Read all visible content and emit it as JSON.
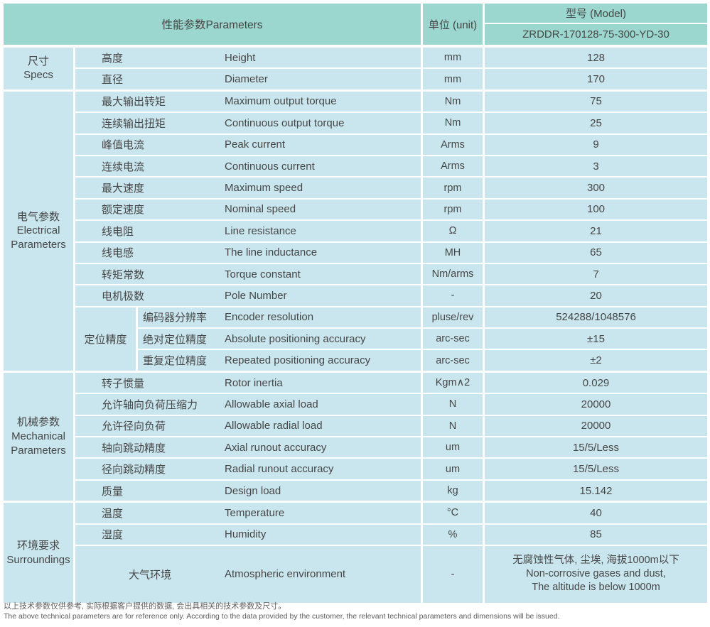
{
  "header": {
    "parameters_label": "性能参数Parameters",
    "unit_label": "单位 (unit)",
    "model_label": "型号 (Model)",
    "model_value": "ZRDDR-170128-75-300-YD-30"
  },
  "colors": {
    "header_teal": "#9bd7ce",
    "row_blue": "#c9e6ee",
    "text": "#464646"
  },
  "sections": {
    "specs": {
      "cn": "尺寸",
      "en1": "Specs",
      "en2": ""
    },
    "electrical": {
      "cn": "电气参数",
      "en1": "Electrical",
      "en2": "Parameters"
    },
    "mechanical": {
      "cn": "机械参数",
      "en1": "Mechanical",
      "en2": "Parameters"
    },
    "surroundings": {
      "cn": "环境要求",
      "en1": "Surroundings",
      "en2": ""
    }
  },
  "accuracy_group": {
    "cn": "定位精度"
  },
  "rows": {
    "height": {
      "cn": "高度",
      "en": "Height",
      "unit": "mm",
      "value": "128"
    },
    "diameter": {
      "cn": "直径",
      "en": "Diameter",
      "unit": "mm",
      "value": "170"
    },
    "max_torque": {
      "cn": "最大输出转矩",
      "en": "Maximum output torque",
      "unit": "Nm",
      "value": "75"
    },
    "cont_torque": {
      "cn": "连续输出扭矩",
      "en": "Continuous output torque",
      "unit": "Nm",
      "value": "25"
    },
    "peak_current": {
      "cn": "峰值电流",
      "en": "Peak current",
      "unit": "Arms",
      "value": "9"
    },
    "cont_current": {
      "cn": "连续电流",
      "en": "Continuous current",
      "unit": "Arms",
      "value": "3"
    },
    "max_speed": {
      "cn": "最大速度",
      "en": "Maximum speed",
      "unit": "rpm",
      "value": "300"
    },
    "nominal_speed": {
      "cn": "额定速度",
      "en": "Nominal speed",
      "unit": "rpm",
      "value": "100"
    },
    "line_resistance": {
      "cn": "线电阻",
      "en": "Line resistance",
      "unit": "Ω",
      "value": "21"
    },
    "line_inductance": {
      "cn": "线电感",
      "en": "The line inductance",
      "unit": "MH",
      "value": "65"
    },
    "torque_constant": {
      "cn": "转矩常数",
      "en": "Torque constant",
      "unit": "Nm/arms",
      "value": "7"
    },
    "pole_number": {
      "cn": "电机极数",
      "en": "Pole Number",
      "unit": "-",
      "value": "20"
    },
    "encoder_resolution": {
      "cn": "编码器分辨率",
      "en": "Encoder resolution",
      "unit": "pluse/rev",
      "value": "524288/1048576"
    },
    "abs_accuracy": {
      "cn": "绝对定位精度",
      "en": "Absolute positioning accuracy",
      "unit": "arc-sec",
      "value": "±15"
    },
    "rep_accuracy": {
      "cn": "重复定位精度",
      "en": "Repeated positioning accuracy",
      "unit": "arc-sec",
      "value": "±2"
    },
    "rotor_inertia": {
      "cn": "转子惯量",
      "en": "Rotor inertia",
      "unit": "Kgm∧2",
      "value": "0.029"
    },
    "axial_load": {
      "cn": "允许轴向负荷压缩力",
      "en": "Allowable axial load",
      "unit": "N",
      "value": "20000"
    },
    "radial_load": {
      "cn": "允许径向负荷",
      "en": "Allowable radial load",
      "unit": "N",
      "value": "20000"
    },
    "axial_runout": {
      "cn": "轴向跳动精度",
      "en": "Axial runout accuracy",
      "unit": "um",
      "value": "15/5/Less"
    },
    "radial_runout": {
      "cn": "径向跳动精度",
      "en": "Radial runout accuracy",
      "unit": "um",
      "value": "15/5/Less"
    },
    "design_load": {
      "cn": "质量",
      "en": "Design load",
      "unit": "kg",
      "value": "15.142"
    },
    "temperature": {
      "cn": "温度",
      "en": "Temperature",
      "unit": "°C",
      "value": "40"
    },
    "humidity": {
      "cn": "湿度",
      "en": "Humidity",
      "unit": "%",
      "value": "85"
    },
    "atmospheric": {
      "cn": "大气环境",
      "en": "Atmospheric environment",
      "unit": "-",
      "value_lines": [
        "无腐蚀性气体, 尘埃, 海拔1000m以下",
        "Non-corrosive gases and dust,",
        "The altitude is below 1000m"
      ]
    }
  },
  "footer": {
    "cn": "以上技术参数仅供参考, 实际根据客户提供的数据, 会出具相关的技术参数及尺寸。",
    "en": "The above technical parameters are for reference only. According to the data provided by the customer, the relevant technical parameters and dimensions will be issued."
  }
}
